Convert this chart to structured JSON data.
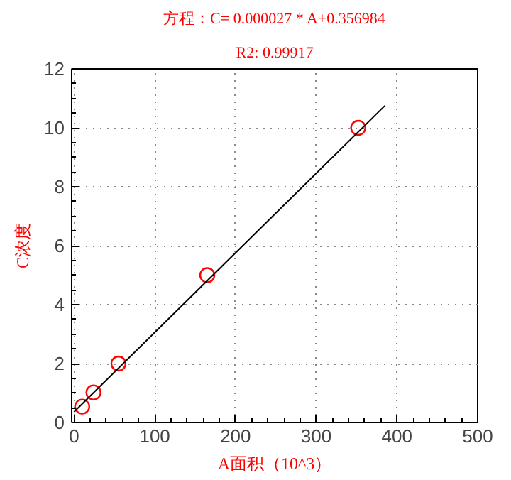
{
  "chart_data": {
    "type": "scatter",
    "title": "方程：C= 0.000027 * A+0.356984",
    "subtitle": "R2: 0.99917",
    "xlabel": "A面积（10^3）",
    "ylabel": "C浓度",
    "series": [
      {
        "color": "#ff0000",
        "x": [
          10,
          24,
          55,
          165,
          352
        ],
        "values": [
          0.54,
          1.02,
          2.0,
          5.0,
          10.0
        ],
        "marker": "circle"
      },
      {
        "type": "line",
        "color": "#000000",
        "x": [
          0,
          385
        ],
        "values": [
          0.36,
          10.75
        ],
        "marker": "none"
      }
    ],
    "xlim": [
      -3,
      500
    ],
    "xticks": [
      0,
      100,
      200,
      300,
      400,
      500
    ],
    "ylim": [
      0,
      12
    ],
    "yticks": [
      0,
      2,
      4,
      6,
      8,
      10,
      12
    ],
    "grid": true
  }
}
